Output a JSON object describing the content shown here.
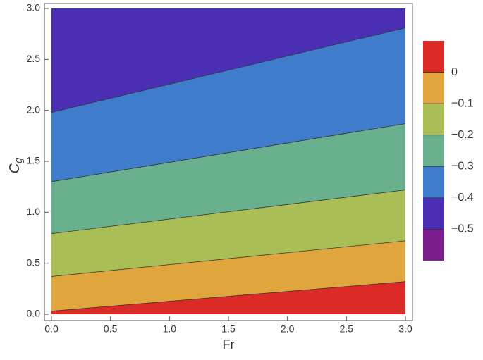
{
  "chart_data": {
    "type": "contour",
    "xlabel": "Fr",
    "ylabel": "C",
    "ylabel_subscript": "g",
    "xlim": [
      0,
      3
    ],
    "ylim": [
      0,
      3
    ],
    "xticks": [
      {
        "value": 0,
        "label": "0.0"
      },
      0.5,
      {
        "value": 1,
        "label": "1.0"
      },
      1.5,
      {
        "value": 2,
        "label": "2.0"
      },
      2.5,
      {
        "value": 3,
        "label": "3.0"
      }
    ],
    "yticks": [
      {
        "value": 0,
        "label": "0.0"
      },
      0.5,
      {
        "value": 1,
        "label": "1.0"
      },
      1.5,
      {
        "value": 2,
        "label": "2.0"
      },
      2.5,
      {
        "value": 3,
        "label": "3.0"
      }
    ],
    "contours": [
      {
        "level": 0,
        "x": [
          0,
          3
        ],
        "y": [
          0.03,
          0.32
        ]
      },
      {
        "level": -0.1,
        "x": [
          0,
          3
        ],
        "y": [
          0.37,
          0.72
        ]
      },
      {
        "level": -0.2,
        "x": [
          0,
          3
        ],
        "y": [
          0.79,
          1.22
        ]
      },
      {
        "level": -0.3,
        "x": [
          0,
          3
        ],
        "y": [
          1.3,
          1.87
        ]
      },
      {
        "level": -0.4,
        "x": [
          0,
          3
        ],
        "y": [
          1.98,
          2.81
        ]
      }
    ],
    "colorbar": {
      "lim": [
        -0.6,
        0.1
      ],
      "ticks": [
        0,
        {
          "value": -0.1,
          "label": "−0.1"
        },
        {
          "value": -0.2,
          "label": "−0.2"
        },
        {
          "value": -0.3,
          "label": "−0.3"
        },
        {
          "value": -0.4,
          "label": "−0.4"
        },
        {
          "value": -0.5,
          "label": "−0.5"
        }
      ],
      "colors": [
        "#dc2a26",
        "#e0a53c",
        "#a9bf55",
        "#69b08f",
        "#3f7ccb",
        "#4a2fb5",
        "#7b1f8c"
      ]
    }
  }
}
